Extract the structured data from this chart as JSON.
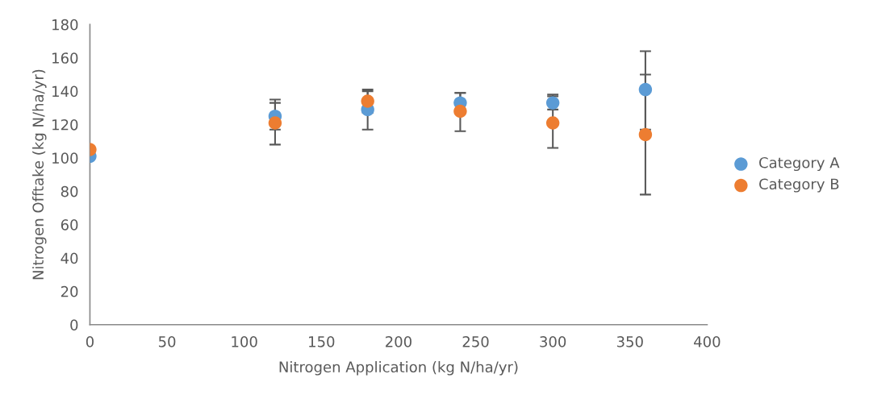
{
  "chart_data": {
    "type": "scatter",
    "xlabel": "Nitrogen Application (kg N/ha/yr)",
    "ylabel": "Nitrogen Offtake (kg N/ha/yr)",
    "x": [
      0,
      120,
      180,
      240,
      300,
      360
    ],
    "series": [
      {
        "name": "Category A",
        "color": "#5b9bd5",
        "values": [
          101,
          125,
          129,
          133,
          133,
          141
        ],
        "errors": [
          null,
          [
            117,
            135
          ],
          [
            117,
            141
          ],
          [
            133,
            139
          ],
          [
            129,
            138
          ],
          [
            117,
            164
          ]
        ]
      },
      {
        "name": "Category B",
        "color": "#ed7d31",
        "values": [
          105,
          121,
          134,
          128,
          121,
          114
        ],
        "errors": [
          null,
          [
            108,
            133
          ],
          [
            127,
            140
          ],
          [
            116,
            139
          ],
          [
            106,
            137
          ],
          [
            78,
            150
          ]
        ]
      }
    ],
    "xlim": [
      0,
      400
    ],
    "xticks": [
      0,
      50,
      100,
      150,
      200,
      250,
      300,
      350,
      400
    ],
    "ylim": [
      0,
      180
    ],
    "yticks": [
      0,
      20,
      40,
      60,
      80,
      100,
      120,
      140,
      160,
      180
    ],
    "grid": false,
    "legend": "right",
    "marker": "circle"
  }
}
